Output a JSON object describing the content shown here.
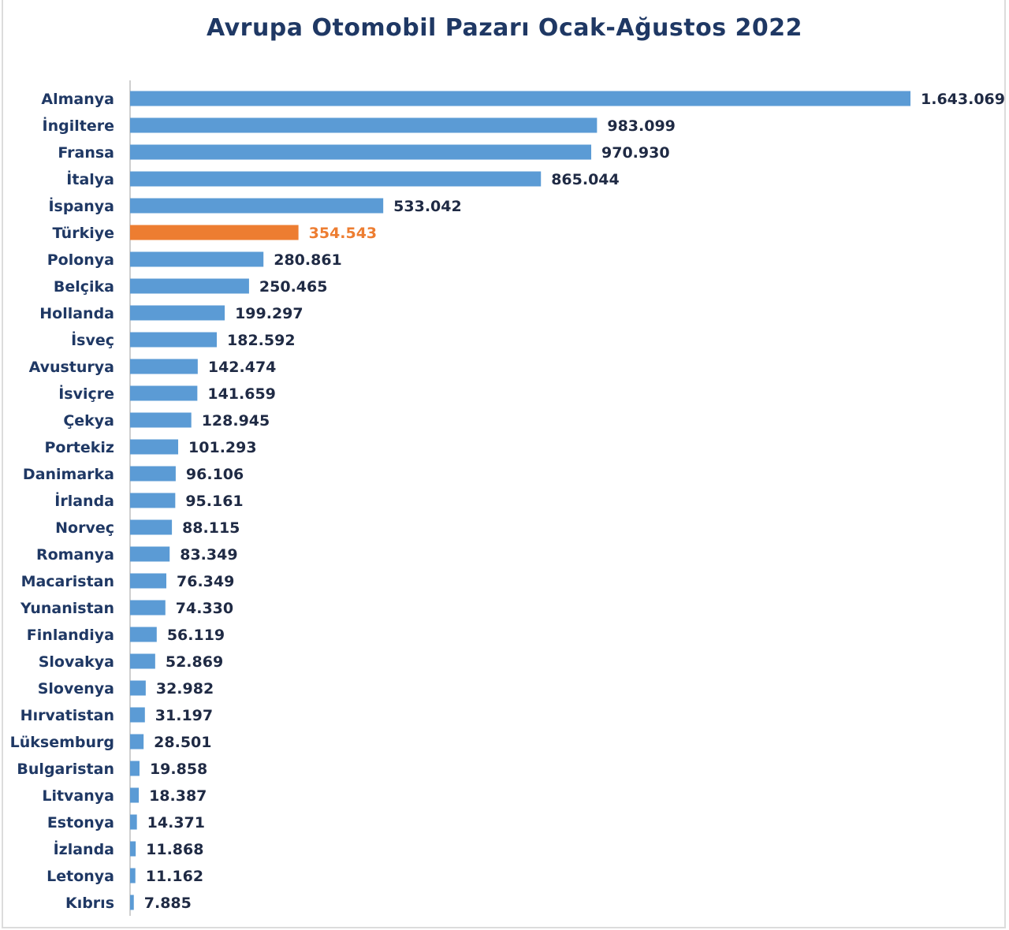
{
  "chart_data": {
    "type": "bar",
    "orientation": "horizontal",
    "title": "Avrupa Otomobil Pazarı Ocak-Ağustos 2022",
    "xlabel": "",
    "ylabel": "",
    "grid": false,
    "legend": "none",
    "colors": {
      "bar": "#5b9bd5",
      "highlight": "#ed7d31",
      "label": "#1f3864"
    },
    "highlight_category": "Türkiye",
    "xlim": [
      0,
      1643069
    ],
    "categories": [
      "Almanya",
      "İngiltere",
      "Fransa",
      "İtalya",
      "İspanya",
      "Türkiye",
      "Polonya",
      "Belçika",
      "Hollanda",
      "İsveç",
      "Avusturya",
      "İsviçre",
      "Çekya",
      "Portekiz",
      "Danimarka",
      "İrlanda",
      "Norveç",
      "Romanya",
      "Macaristan",
      "Yunanistan",
      "Finlandiya",
      "Slovakya",
      "Slovenya",
      "Hırvatistan",
      "Lüksemburg",
      "Bulgaristan",
      "Litvanya",
      "Estonya",
      "İzlanda",
      "Letonya",
      "Kıbrıs"
    ],
    "values": [
      1643069,
      983099,
      970930,
      865044,
      533042,
      354543,
      280861,
      250465,
      199297,
      182592,
      142474,
      141659,
      128945,
      101293,
      96106,
      95161,
      88115,
      83349,
      76349,
      74330,
      56119,
      52869,
      32982,
      31197,
      28501,
      19858,
      18387,
      14371,
      11868,
      11162,
      7885
    ],
    "value_labels": [
      "1.643.069",
      "983.099",
      "970.930",
      "865.044",
      "533.042",
      "354.543",
      "280.861",
      "250.465",
      "199.297",
      "182.592",
      "142.474",
      "141.659",
      "128.945",
      "101.293",
      "96.106",
      "95.161",
      "88.115",
      "83.349",
      "76.349",
      "74.330",
      "56.119",
      "52.869",
      "32.982",
      "31.197",
      "28.501",
      "19.858",
      "18.387",
      "14.371",
      "11.868",
      "11.162",
      "7.885"
    ]
  }
}
